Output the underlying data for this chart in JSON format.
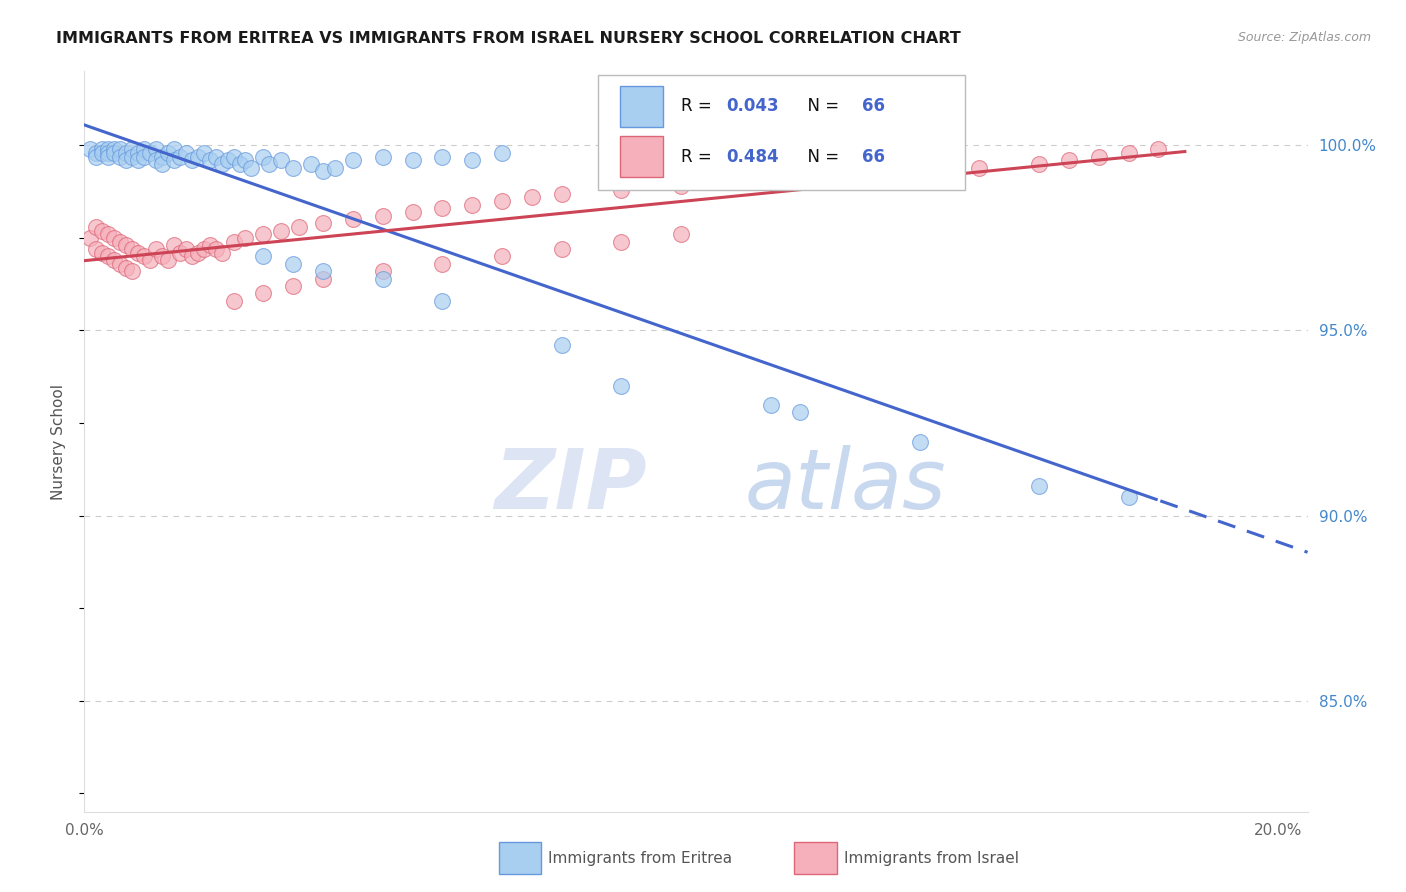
{
  "title": "IMMIGRANTS FROM ERITREA VS IMMIGRANTS FROM ISRAEL NURSERY SCHOOL CORRELATION CHART",
  "source": "Source: ZipAtlas.com",
  "ylabel": "Nursery School",
  "y_tick_labels": [
    "85.0%",
    "90.0%",
    "95.0%",
    "100.0%"
  ],
  "y_tick_values": [
    0.85,
    0.9,
    0.95,
    1.0
  ],
  "x_min": 0.0,
  "x_max": 0.205,
  "y_min": 0.82,
  "y_max": 1.02,
  "legend_eritrea": "Immigrants from Eritrea",
  "legend_israel": "Immigrants from Israel",
  "R_eritrea": "0.043",
  "N_eritrea": "66",
  "R_israel": "0.484",
  "N_israel": "66",
  "color_eritrea_fill": "#A8CEF0",
  "color_eritrea_edge": "#6699DD",
  "color_israel_fill": "#F5B0BB",
  "color_israel_edge": "#DD6677",
  "color_line_eritrea": "#4466CC",
  "color_line_israel": "#CC4455",
  "color_r_value": "#4466CC",
  "color_grid": "#CCCCCC",
  "color_ytick": "#4488CC",
  "seed": 123,
  "eri_x": [
    0.001,
    0.002,
    0.002,
    0.003,
    0.003,
    0.004,
    0.004,
    0.004,
    0.005,
    0.005,
    0.006,
    0.006,
    0.007,
    0.007,
    0.008,
    0.008,
    0.009,
    0.009,
    0.01,
    0.01,
    0.011,
    0.012,
    0.012,
    0.013,
    0.013,
    0.014,
    0.015,
    0.015,
    0.016,
    0.017,
    0.018,
    0.019,
    0.02,
    0.021,
    0.022,
    0.023,
    0.024,
    0.025,
    0.026,
    0.027,
    0.028,
    0.03,
    0.031,
    0.033,
    0.035,
    0.038,
    0.04,
    0.042,
    0.045,
    0.05,
    0.055,
    0.06,
    0.065,
    0.07,
    0.03,
    0.035,
    0.04,
    0.05,
    0.06,
    0.08,
    0.09,
    0.115,
    0.12,
    0.14,
    0.16,
    0.175
  ],
  "eri_y": [
    0.999,
    0.998,
    0.997,
    0.999,
    0.998,
    0.999,
    0.998,
    0.997,
    0.999,
    0.998,
    0.999,
    0.997,
    0.998,
    0.996,
    0.999,
    0.997,
    0.998,
    0.996,
    0.999,
    0.997,
    0.998,
    0.999,
    0.996,
    0.997,
    0.995,
    0.998,
    0.999,
    0.996,
    0.997,
    0.998,
    0.996,
    0.997,
    0.998,
    0.996,
    0.997,
    0.995,
    0.996,
    0.997,
    0.995,
    0.996,
    0.994,
    0.997,
    0.995,
    0.996,
    0.994,
    0.995,
    0.993,
    0.994,
    0.996,
    0.997,
    0.996,
    0.997,
    0.996,
    0.998,
    0.97,
    0.968,
    0.966,
    0.964,
    0.958,
    0.946,
    0.935,
    0.93,
    0.928,
    0.92,
    0.908,
    0.905
  ],
  "isr_x": [
    0.001,
    0.002,
    0.002,
    0.003,
    0.003,
    0.004,
    0.004,
    0.005,
    0.005,
    0.006,
    0.006,
    0.007,
    0.007,
    0.008,
    0.008,
    0.009,
    0.01,
    0.011,
    0.012,
    0.013,
    0.014,
    0.015,
    0.016,
    0.017,
    0.018,
    0.019,
    0.02,
    0.021,
    0.022,
    0.023,
    0.025,
    0.027,
    0.03,
    0.033,
    0.036,
    0.04,
    0.045,
    0.05,
    0.055,
    0.06,
    0.065,
    0.07,
    0.075,
    0.08,
    0.09,
    0.1,
    0.11,
    0.12,
    0.13,
    0.14,
    0.15,
    0.16,
    0.165,
    0.17,
    0.175,
    0.18,
    0.025,
    0.03,
    0.035,
    0.04,
    0.05,
    0.06,
    0.07,
    0.08,
    0.09,
    0.1
  ],
  "isr_y": [
    0.975,
    0.978,
    0.972,
    0.977,
    0.971,
    0.976,
    0.97,
    0.975,
    0.969,
    0.974,
    0.968,
    0.973,
    0.967,
    0.972,
    0.966,
    0.971,
    0.97,
    0.969,
    0.972,
    0.97,
    0.969,
    0.973,
    0.971,
    0.972,
    0.97,
    0.971,
    0.972,
    0.973,
    0.972,
    0.971,
    0.974,
    0.975,
    0.976,
    0.977,
    0.978,
    0.979,
    0.98,
    0.981,
    0.982,
    0.983,
    0.984,
    0.985,
    0.986,
    0.987,
    0.988,
    0.989,
    0.99,
    0.991,
    0.992,
    0.993,
    0.994,
    0.995,
    0.996,
    0.997,
    0.998,
    0.999,
    0.958,
    0.96,
    0.962,
    0.964,
    0.966,
    0.968,
    0.97,
    0.972,
    0.974,
    0.976
  ]
}
